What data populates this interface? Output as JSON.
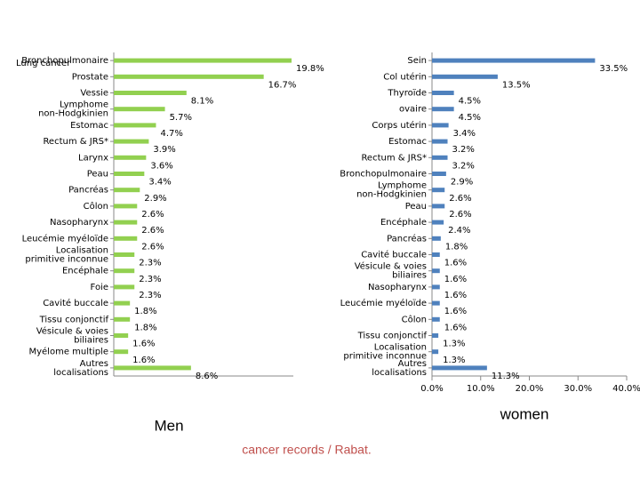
{
  "chart_data": [
    {
      "type": "hbar",
      "title": "Men",
      "annotation": "Lung cancer",
      "color": "#92d050",
      "categories": [
        "Bronchopulmonaire",
        "Prostate",
        "Vessie",
        "Lymphome non-Hodgkinien",
        "Estomac",
        "Rectum & JRS*",
        "Larynx",
        "Peau",
        "Pancréas",
        "Côlon",
        "Nasopharynx",
        "Leucémie myéloïde",
        "Localisation primitive inconnue",
        "Encéphale",
        "Foie",
        "Cavité buccale",
        "Tissu conjonctif",
        "Vésicule & voies biliaires",
        "Myélome multiple",
        "Autres localisations"
      ],
      "values": [
        19.8,
        16.7,
        8.1,
        5.7,
        4.7,
        3.9,
        3.6,
        3.4,
        2.9,
        2.6,
        2.6,
        2.6,
        2.3,
        2.3,
        2.3,
        1.8,
        1.8,
        1.6,
        1.6,
        8.6
      ],
      "value_labels": [
        "19.8%",
        "16.7%",
        "8.1%",
        "5.7%",
        "4.7%",
        "3.9%",
        "3.6%",
        "3.4%",
        "2.9%",
        "2.6%",
        "2.6%",
        "2.6%",
        "2.3%",
        "2.3%",
        "2.3%",
        "1.8%",
        "1.8%",
        "1.6%",
        "1.6%",
        "8.6%"
      ],
      "xlim": [
        0,
        20
      ]
    },
    {
      "type": "hbar",
      "title": "women",
      "color": "#4f81bd",
      "categories": [
        "Sein",
        "Col utérin",
        "Thyroïde",
        "ovaire",
        "Corps utérin",
        "Estomac",
        "Rectum & JRS*",
        "Bronchopulmonaire",
        "Lymphome non-Hodgkinien",
        "Peau",
        "Encéphale",
        "Pancréas",
        "Cavité buccale",
        "Vésicule & voies biliaires",
        "Nasopharynx",
        "Leucémie myéloïde",
        "Côlon",
        "Tissu conjonctif",
        "Localisation primitive inconnue",
        "Autres localisations"
      ],
      "values": [
        33.5,
        13.5,
        4.5,
        4.5,
        3.4,
        3.2,
        3.2,
        2.9,
        2.6,
        2.6,
        2.4,
        1.8,
        1.6,
        1.6,
        1.6,
        1.6,
        1.6,
        1.3,
        1.3,
        11.3
      ],
      "value_labels": [
        "33.5%",
        "13.5%",
        "4.5%",
        "4.5%",
        "3.4%",
        "3.2%",
        "3.2%",
        "2.9%",
        "2.6%",
        "2.6%",
        "2.4%",
        "1.8%",
        "1.6%",
        "1.6%",
        "1.6%",
        "1.6%",
        "1.6%",
        "1.3%",
        "1.3%",
        "11.3%"
      ],
      "xlim": [
        0,
        40
      ],
      "xticks": [
        {
          "value": 0,
          "label": "0.0%"
        },
        {
          "value": 10,
          "label": "10.0%"
        },
        {
          "value": 20,
          "label": "20.0%"
        },
        {
          "value": 30,
          "label": "30.0%"
        },
        {
          "value": 40,
          "label": "40.0%"
        }
      ]
    }
  ],
  "footer": "cancer records / Rabat."
}
